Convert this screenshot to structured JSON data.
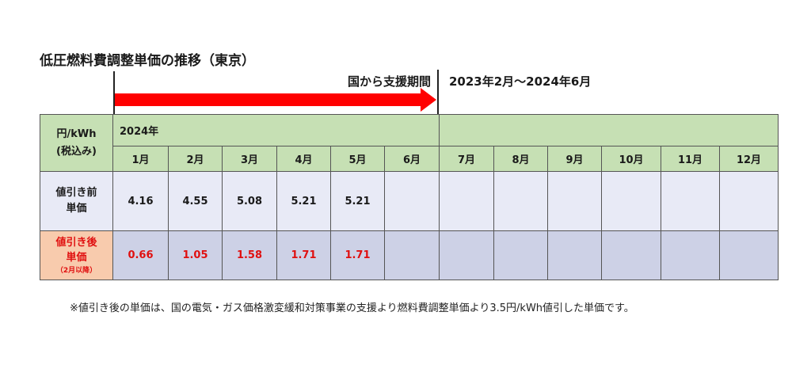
{
  "title": "低圧燃料費調整単価の推移（東京）",
  "support_label": "国から支援期間",
  "period_label": "2023年2月～2024年6月",
  "table": {
    "unit_line1": "円/kWh",
    "unit_line2": "(税込み)",
    "year": "2024年",
    "months": [
      "1月",
      "2月",
      "3月",
      "4月",
      "5月",
      "6月",
      "7月",
      "8月",
      "9月",
      "10月",
      "11月",
      "12月"
    ],
    "before": {
      "label_line1": "値引き前",
      "label_line2": "単価",
      "values": [
        "4.16",
        "4.55",
        "5.08",
        "5.21",
        "5.21",
        "",
        "",
        "",
        "",
        "",
        "",
        ""
      ]
    },
    "after": {
      "label_line1": "値引き後",
      "label_line2": "単価",
      "label_note": "（2月以降）",
      "values": [
        "0.66",
        "1.05",
        "1.58",
        "1.71",
        "1.71",
        "",
        "",
        "",
        "",
        "",
        "",
        ""
      ]
    }
  },
  "footnote": "※値引き後の単価は、国の電気・ガス価格激変緩和対策事業の支援より燃料費調整単価より3.5円/kWh値引した単価です。",
  "colors": {
    "header_green": "#c6e0b4",
    "arrow_red": "#ff0000",
    "row_before_bg": "#e8eaf6",
    "row_after_bg": "#cdd1e6",
    "after_label_bg": "#f8cbad",
    "after_text_red": "#e01010"
  }
}
